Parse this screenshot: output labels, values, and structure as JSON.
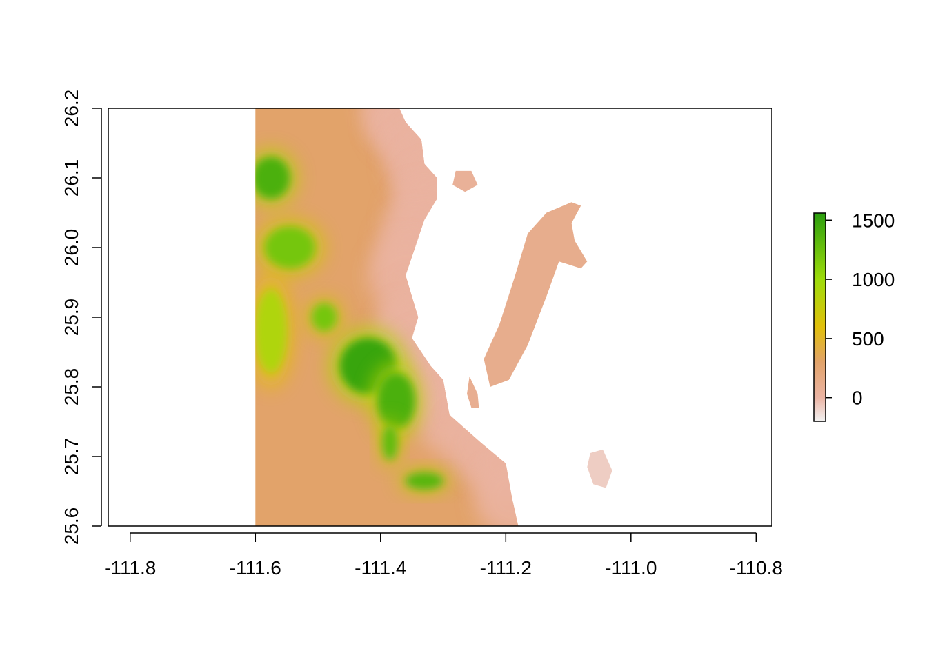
{
  "chart_data": {
    "type": "heatmap",
    "title": "",
    "xlabel": "",
    "ylabel": "",
    "xlim": [
      -111.835,
      -110.775
    ],
    "ylim": [
      25.6,
      26.2
    ],
    "x_ticks": [
      {
        "value": -111.8,
        "label": "-111.8"
      },
      {
        "value": -111.6,
        "label": "-111.6"
      },
      {
        "value": -111.4,
        "label": "-111.4"
      },
      {
        "value": -111.2,
        "label": "-111.2"
      },
      {
        "value": -111.0,
        "label": "-111.0"
      },
      {
        "value": -110.8,
        "label": "-110.8"
      }
    ],
    "y_ticks": [
      {
        "value": 25.6,
        "label": "25.6"
      },
      {
        "value": 25.7,
        "label": "25.7"
      },
      {
        "value": 25.8,
        "label": "25.8"
      },
      {
        "value": 25.9,
        "label": "25.9"
      },
      {
        "value": 26.0,
        "label": "26.0"
      },
      {
        "value": 26.1,
        "label": "26.1"
      },
      {
        "value": 26.2,
        "label": "26.2"
      }
    ],
    "legend": {
      "placement": "right",
      "range": [
        -200,
        1560
      ],
      "ticks": [
        {
          "value": 0,
          "label": "0"
        },
        {
          "value": 500,
          "label": "500"
        },
        {
          "value": 1000,
          "label": "1000"
        },
        {
          "value": 1500,
          "label": "1500"
        }
      ],
      "color_stops": [
        {
          "value": -200,
          "color": "#f2f2f2"
        },
        {
          "value": 0,
          "color": "#ebb4a4"
        },
        {
          "value": 300,
          "color": "#e2a36a"
        },
        {
          "value": 600,
          "color": "#e1c00a"
        },
        {
          "value": 1000,
          "color": "#9edc0a"
        },
        {
          "value": 1560,
          "color": "#2b9e0f"
        }
      ]
    },
    "regions": [
      {
        "name": "mainland",
        "polygon": [
          [
            -111.6,
            26.2
          ],
          [
            -111.37,
            26.2
          ],
          [
            -111.36,
            26.18
          ],
          [
            -111.335,
            26.155
          ],
          [
            -111.33,
            26.12
          ],
          [
            -111.31,
            26.1
          ],
          [
            -111.31,
            26.07
          ],
          [
            -111.33,
            26.04
          ],
          [
            -111.345,
            26.0
          ],
          [
            -111.36,
            25.96
          ],
          [
            -111.34,
            25.9
          ],
          [
            -111.35,
            25.87
          ],
          [
            -111.32,
            25.83
          ],
          [
            -111.3,
            25.81
          ],
          [
            -111.29,
            25.76
          ],
          [
            -111.24,
            25.72
          ],
          [
            -111.2,
            25.69
          ],
          [
            -111.19,
            25.64
          ],
          [
            -111.18,
            25.6
          ],
          [
            -111.6,
            25.6
          ]
        ],
        "value": 300
      },
      {
        "name": "island-north",
        "polygon": [
          [
            -111.28,
            26.11
          ],
          [
            -111.255,
            26.11
          ],
          [
            -111.245,
            26.09
          ],
          [
            -111.265,
            26.08
          ],
          [
            -111.285,
            26.09
          ]
        ],
        "value": 60
      },
      {
        "name": "island-long",
        "polygon": [
          [
            -111.135,
            26.05
          ],
          [
            -111.095,
            26.065
          ],
          [
            -111.08,
            26.06
          ],
          [
            -111.095,
            26.035
          ],
          [
            -111.09,
            26.01
          ],
          [
            -111.07,
            25.98
          ],
          [
            -111.08,
            25.97
          ],
          [
            -111.115,
            25.98
          ],
          [
            -111.135,
            25.93
          ],
          [
            -111.165,
            25.86
          ],
          [
            -111.195,
            25.81
          ],
          [
            -111.225,
            25.8
          ],
          [
            -111.235,
            25.84
          ],
          [
            -111.21,
            25.89
          ],
          [
            -111.185,
            25.96
          ],
          [
            -111.165,
            26.02
          ],
          [
            -111.145,
            26.04
          ]
        ],
        "value": 120
      },
      {
        "name": "islet-south",
        "polygon": [
          [
            -111.258,
            25.815
          ],
          [
            -111.245,
            25.79
          ],
          [
            -111.243,
            25.77
          ],
          [
            -111.255,
            25.77
          ],
          [
            -111.262,
            25.79
          ]
        ],
        "value": 100
      },
      {
        "name": "island-southeast",
        "polygon": [
          [
            -111.065,
            25.705
          ],
          [
            -111.045,
            25.71
          ],
          [
            -111.03,
            25.68
          ],
          [
            -111.04,
            25.655
          ],
          [
            -111.06,
            25.66
          ],
          [
            -111.07,
            25.685
          ]
        ],
        "value": -80
      }
    ],
    "highland_zones": [
      {
        "cx": -111.575,
        "cy": 26.1,
        "rx": 0.03,
        "ry": 0.03,
        "value": 1400
      },
      {
        "cx": -111.545,
        "cy": 26.0,
        "rx": 0.04,
        "ry": 0.03,
        "value": 1200
      },
      {
        "cx": -111.575,
        "cy": 25.88,
        "rx": 0.025,
        "ry": 0.06,
        "value": 900
      },
      {
        "cx": -111.49,
        "cy": 25.9,
        "rx": 0.02,
        "ry": 0.02,
        "value": 1200
      },
      {
        "cx": -111.42,
        "cy": 25.83,
        "rx": 0.045,
        "ry": 0.04,
        "value": 1500
      },
      {
        "cx": -111.375,
        "cy": 25.78,
        "rx": 0.03,
        "ry": 0.04,
        "value": 1400
      },
      {
        "cx": -111.385,
        "cy": 25.72,
        "rx": 0.012,
        "ry": 0.025,
        "value": 1300
      },
      {
        "cx": -111.33,
        "cy": 25.665,
        "rx": 0.03,
        "ry": 0.012,
        "value": 1350
      }
    ]
  }
}
